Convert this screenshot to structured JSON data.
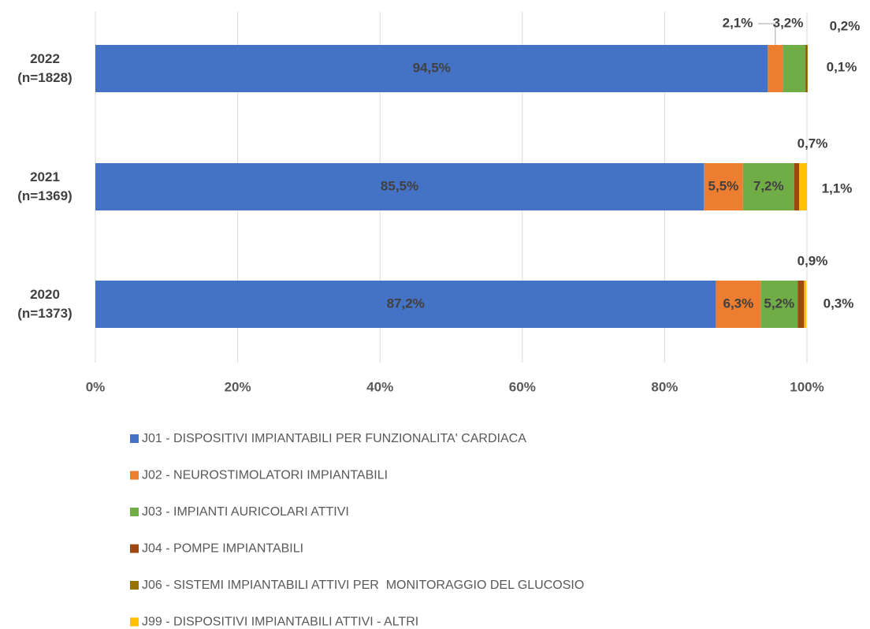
{
  "chart_data": {
    "type": "stacked_bar_horizontal",
    "categories": [
      "2022\n(n=1828)",
      "2021\n(n=1369)",
      "2020\n(n=1373)"
    ],
    "series": [
      {
        "name": "J01 - DISPOSITIVI IMPIANTABILI PER FUNZIONALITA' CARDIACA",
        "color": "#4472c4",
        "values": [
          94.5,
          85.5,
          87.2
        ],
        "value_labels": [
          "94,5%",
          "85,5%",
          "87,2%"
        ]
      },
      {
        "name": "J02 - NEUROSTIMOLATORI IMPIANTABILI",
        "color": "#ed7d31",
        "values": [
          2.1,
          5.5,
          6.3
        ],
        "value_labels": [
          "2,1%",
          "5,5%",
          "6,3%"
        ]
      },
      {
        "name": "J03 - IMPIANTI AURICOLARI ATTIVI",
        "color": "#70ad47",
        "values": [
          3.2,
          7.2,
          5.2
        ],
        "value_labels": [
          "3,2%",
          "7,2%",
          "5,2%"
        ]
      },
      {
        "name": "J04 - POMPE IMPIANTABILI",
        "color": "#9e480e",
        "values": [
          0.2,
          0.7,
          0.9
        ],
        "value_labels": [
          "0,2%",
          "0,7%",
          "0,9%"
        ]
      },
      {
        "name": "J06 - SISTEMI IMPIANTABILI ATTIVI PER  MONITORAGGIO DEL GLUCOSIO",
        "color": "#997300",
        "values": [
          0.1,
          null,
          null
        ],
        "value_labels": [
          "0,1%",
          null,
          null
        ]
      },
      {
        "name": "J99 - DISPOSITIVI IMPIANTABILI ATTIVI - ALTRI",
        "color": "#ffc000",
        "values": [
          null,
          1.1,
          0.3
        ],
        "value_labels": [
          null,
          "1,1%",
          "0,3%"
        ]
      }
    ],
    "xlim": [
      0,
      100
    ],
    "xticks": [
      {
        "value": 0,
        "label": "0%"
      },
      {
        "value": 20,
        "label": "20%"
      },
      {
        "value": 40,
        "label": "40%"
      },
      {
        "value": 60,
        "label": "60%"
      },
      {
        "value": 80,
        "label": "80%"
      },
      {
        "value": 100,
        "label": "100%"
      }
    ],
    "grid": true,
    "legend": "bottom"
  }
}
